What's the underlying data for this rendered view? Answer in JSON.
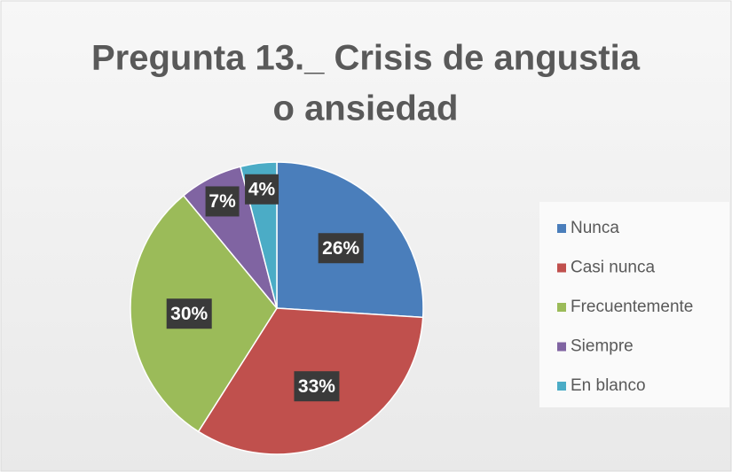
{
  "chart_data": {
    "type": "pie",
    "title": [
      "Pregunta 13._ Crisis de angustia",
      "o ansiedad"
    ],
    "categories": [
      "Nunca",
      "Casi nunca",
      "Frecuentemente",
      "Siempre",
      "En blanco"
    ],
    "values": [
      26,
      33,
      30,
      7,
      4
    ],
    "value_labels": [
      "26%",
      "33%",
      "30%",
      "7%",
      "4%"
    ],
    "colors": [
      "#4a7ebb",
      "#c0504d",
      "#9bbb59",
      "#8064a2",
      "#4bacc6"
    ],
    "legend": "right"
  }
}
